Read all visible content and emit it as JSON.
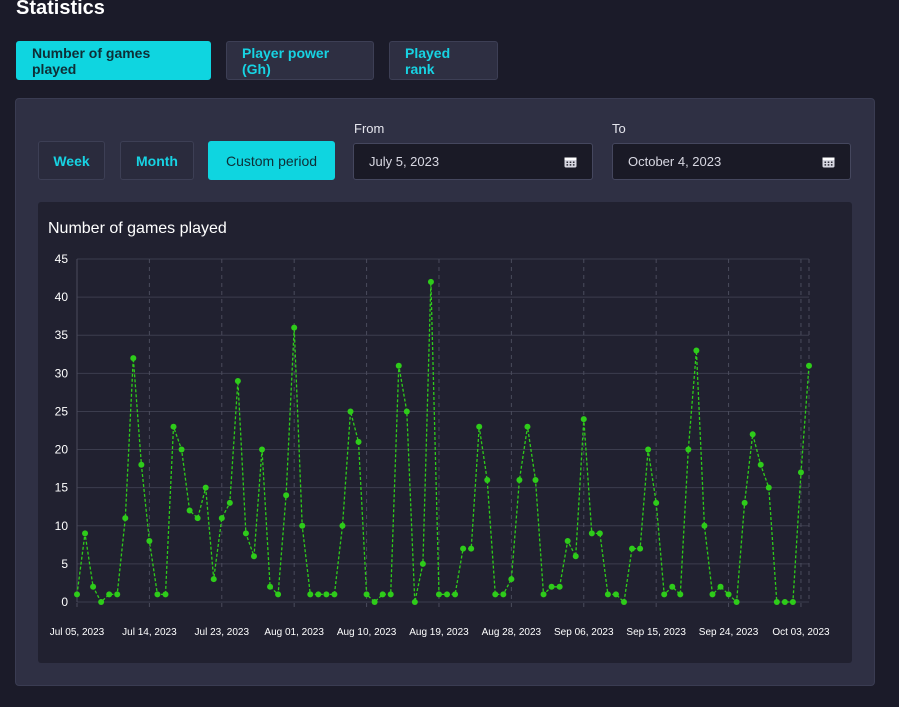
{
  "page_title": "Statistics",
  "top_tabs": [
    {
      "label": "Number of games played",
      "active": true
    },
    {
      "label": "Player power (Gh)",
      "active": false
    },
    {
      "label": "Played rank",
      "active": false
    }
  ],
  "period_buttons": [
    {
      "label": "Week",
      "active": false
    },
    {
      "label": "Month",
      "active": false
    },
    {
      "label": "Custom period",
      "active": true
    }
  ],
  "from": {
    "label": "From",
    "value": "July 5, 2023",
    "icon": "calendar-icon"
  },
  "to": {
    "label": "To",
    "value": "October 4, 2023",
    "icon": "calendar-icon"
  },
  "colors": {
    "accent": "#0fd5e0",
    "line": "#2ecc1a",
    "point": "#2ecc1a"
  },
  "chart_data": {
    "type": "line",
    "title": "Number of games played",
    "xlabel": "",
    "ylabel": "",
    "ylim": [
      0,
      45
    ],
    "yticks": [
      0,
      5,
      10,
      15,
      20,
      25,
      30,
      35,
      40,
      45
    ],
    "x_tick_labels": [
      "Jul 05, 2023",
      "Jul 14, 2023",
      "Jul 23, 2023",
      "Aug 01, 2023",
      "Aug 10, 2023",
      "Aug 19, 2023",
      "Aug 28, 2023",
      "Sep 06, 2023",
      "Sep 15, 2023",
      "Sep 24, 2023",
      "Oct 03, 2023"
    ],
    "x_tick_every": 9,
    "x_start": "2023-07-05",
    "x_end": "2023-10-04",
    "grid": true,
    "series": [
      {
        "values": [
          1,
          9,
          2,
          0,
          1,
          1,
          11,
          32,
          18,
          8,
          1,
          1,
          23,
          20,
          12,
          11,
          15,
          3,
          11,
          13,
          29,
          9,
          6,
          20,
          2,
          1,
          14,
          36,
          10,
          1,
          1,
          1,
          1,
          10,
          25,
          21,
          1,
          0,
          1,
          1,
          31,
          25,
          0,
          5,
          42,
          1,
          1,
          1,
          7,
          7,
          23,
          16,
          1,
          1,
          3,
          16,
          23,
          16,
          1,
          2,
          2,
          8,
          6,
          24,
          9,
          9,
          1,
          1,
          0,
          7,
          7,
          20,
          13,
          1,
          2,
          1,
          20,
          33,
          10,
          1,
          2,
          1,
          0,
          13,
          22,
          18,
          15,
          0,
          0,
          0,
          17,
          31
        ]
      }
    ]
  }
}
